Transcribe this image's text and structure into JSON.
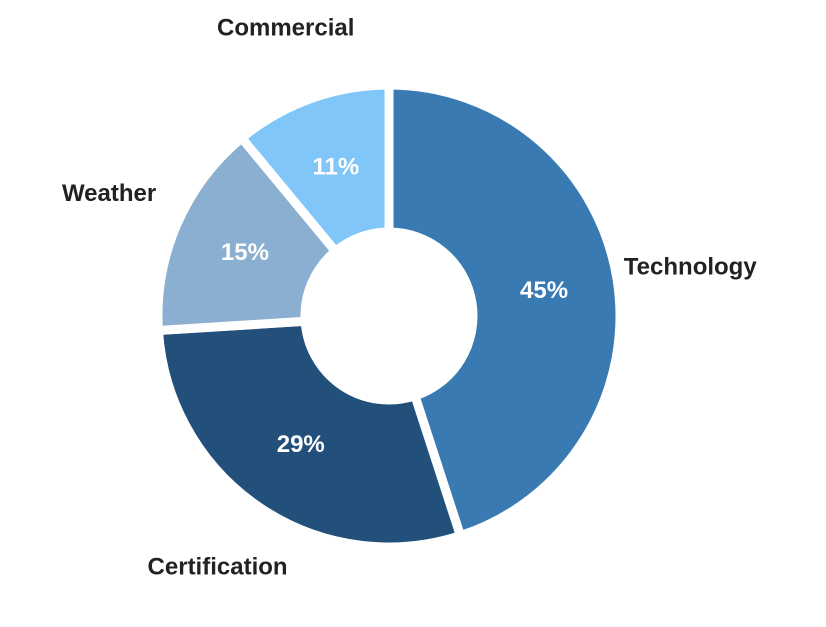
{
  "chart_data": {
    "type": "pie",
    "categories": [
      "Technology",
      "Certification",
      "Weather",
      "Commercial"
    ],
    "values": [
      45,
      29,
      15,
      11
    ],
    "value_labels": [
      "45%",
      "29%",
      "15%",
      "11%"
    ],
    "colors": [
      "#3a7ab3",
      "#22507a",
      "#8aafd0",
      "#80c6f8"
    ],
    "donut": true
  }
}
